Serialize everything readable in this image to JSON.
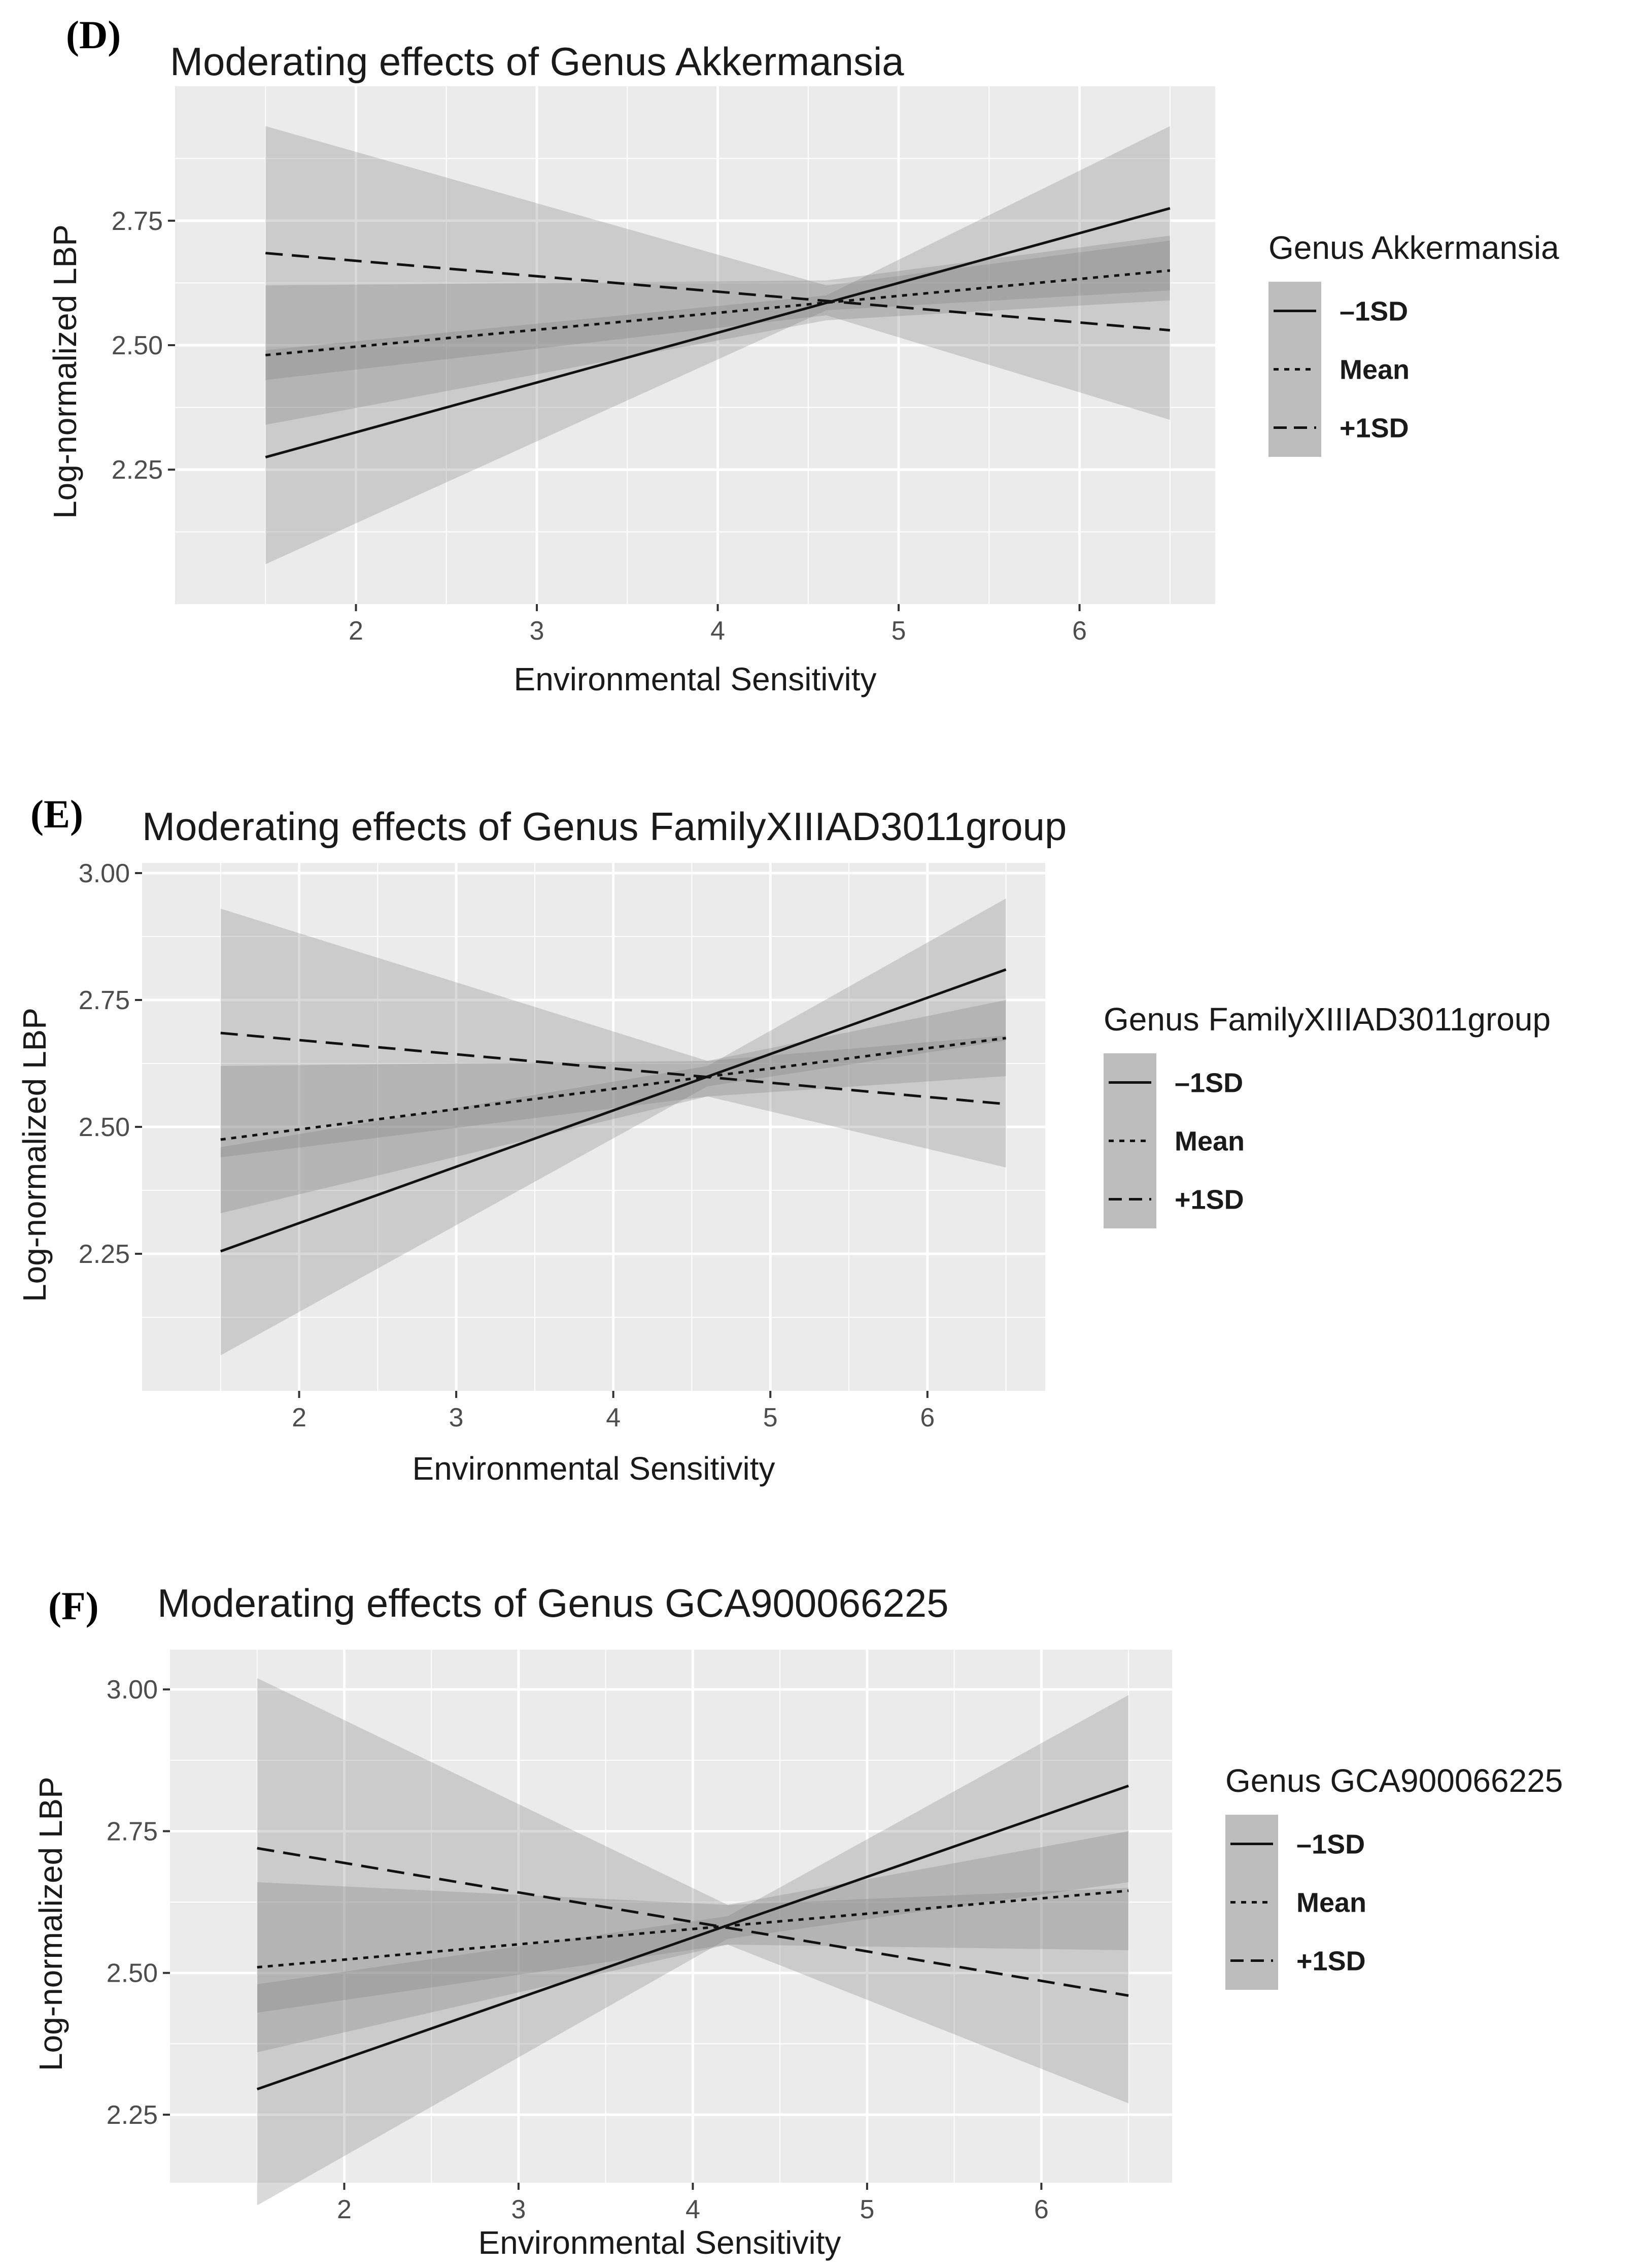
{
  "chart_data": [
    {
      "type": "line",
      "panel_label": "(D)",
      "title": "Moderating effects of Genus Akkermansia",
      "xlabel": "Environmental Sensitivity",
      "ylabel": "Log-normalized LBP",
      "x_ticks": [
        2,
        3,
        4,
        5,
        6
      ],
      "y_ticks": [
        2.25,
        2.5,
        2.75
      ],
      "y_tick_labels": [
        "2.25",
        "2.50",
        "2.75"
      ],
      "xlim": [
        1.0,
        6.75
      ],
      "ylim": [
        1.98,
        3.02
      ],
      "grid": true,
      "legend": {
        "title": "Genus Akkermansia",
        "position": "right",
        "entries": [
          "–1SD",
          "Mean",
          "+1SD"
        ]
      },
      "series": [
        {
          "name": "–1SD",
          "line_style": "solid",
          "x": [
            1.5,
            6.5
          ],
          "y": [
            2.275,
            2.775
          ],
          "band": {
            "x": [
              1.5,
              4.6,
              6.5
            ],
            "lower": [
              2.06,
              2.57,
              2.61
            ],
            "upper": [
              2.49,
              2.6,
              2.94
            ]
          }
        },
        {
          "name": "Mean",
          "line_style": "dotted",
          "x": [
            1.5,
            6.5
          ],
          "y": [
            2.48,
            2.65
          ],
          "band": {
            "x": [
              1.5,
              4.6,
              6.5
            ],
            "lower": [
              2.34,
              2.55,
              2.59
            ],
            "upper": [
              2.62,
              2.63,
              2.72
            ]
          }
        },
        {
          "name": "+1SD",
          "line_style": "dashed",
          "x": [
            1.5,
            6.5
          ],
          "y": [
            2.685,
            2.53
          ],
          "band": {
            "x": [
              1.5,
              4.6,
              6.5
            ],
            "lower": [
              2.43,
              2.56,
              2.35
            ],
            "upper": [
              2.94,
              2.62,
              2.71
            ]
          }
        }
      ]
    },
    {
      "type": "line",
      "panel_label": "(E)",
      "title": "Moderating effects of Genus FamilyXIIIAD3011group",
      "xlabel": "Environmental Sensitivity",
      "ylabel": "Log-normalized LBP",
      "x_ticks": [
        2,
        3,
        4,
        5,
        6
      ],
      "y_ticks": [
        2.25,
        2.5,
        2.75,
        3.0
      ],
      "y_tick_labels": [
        "2.25",
        "2.50",
        "2.75",
        "3.00"
      ],
      "xlim": [
        1.0,
        6.75
      ],
      "ylim": [
        1.98,
        3.02
      ],
      "grid": true,
      "legend": {
        "title": "Genus FamilyXIIIAD3011group",
        "position": "right",
        "entries": [
          "–1SD",
          "Mean",
          "+1SD"
        ]
      },
      "series": [
        {
          "name": "–1SD",
          "line_style": "solid",
          "x": [
            1.5,
            6.5
          ],
          "y": [
            2.255,
            2.81
          ],
          "band": {
            "x": [
              1.5,
              4.6,
              6.5
            ],
            "lower": [
              2.05,
              2.58,
              2.67
            ],
            "upper": [
              2.46,
              2.62,
              2.95
            ]
          }
        },
        {
          "name": "Mean",
          "line_style": "dotted",
          "x": [
            1.5,
            6.5
          ],
          "y": [
            2.475,
            2.675
          ],
          "band": {
            "x": [
              1.5,
              4.6,
              6.5
            ],
            "lower": [
              2.33,
              2.56,
              2.6
            ],
            "upper": [
              2.62,
              2.63,
              2.75
            ]
          }
        },
        {
          "name": "+1SD",
          "line_style": "dashed",
          "x": [
            1.5,
            6.5
          ],
          "y": [
            2.685,
            2.545
          ],
          "band": {
            "x": [
              1.5,
              4.6,
              6.5
            ],
            "lower": [
              2.44,
              2.56,
              2.42
            ],
            "upper": [
              2.93,
              2.63,
              2.68
            ]
          }
        }
      ]
    },
    {
      "type": "line",
      "panel_label": "(F)",
      "title": "Moderating effects of Genus GCA900066225",
      "xlabel": "Environmental Sensitivity",
      "ylabel": "Log-normalized LBP",
      "x_ticks": [
        2,
        3,
        4,
        5,
        6
      ],
      "y_ticks": [
        2.25,
        2.5,
        2.75,
        3.0
      ],
      "y_tick_labels": [
        "2.25",
        "2.50",
        "2.75",
        "3.00"
      ],
      "xlim": [
        1.0,
        6.75
      ],
      "ylim": [
        2.13,
        3.07
      ],
      "grid": true,
      "legend": {
        "title": "Genus GCA900066225",
        "position": "right",
        "entries": [
          "–1SD",
          "Mean",
          "+1SD"
        ]
      },
      "series": [
        {
          "name": "–1SD",
          "line_style": "solid",
          "x": [
            1.5,
            6.5
          ],
          "y": [
            2.295,
            2.83
          ],
          "band": {
            "x": [
              1.5,
              4.2,
              6.5
            ],
            "lower": [
              2.09,
              2.56,
              2.66
            ],
            "upper": [
              2.48,
              2.6,
              2.99
            ]
          }
        },
        {
          "name": "Mean",
          "line_style": "dotted",
          "x": [
            1.5,
            6.5
          ],
          "y": [
            2.51,
            2.645
          ],
          "band": {
            "x": [
              1.5,
              4.2,
              6.5
            ],
            "lower": [
              2.36,
              2.55,
              2.54
            ],
            "upper": [
              2.66,
              2.62,
              2.75
            ]
          }
        },
        {
          "name": "+1SD",
          "line_style": "dashed",
          "x": [
            1.5,
            6.5
          ],
          "y": [
            2.72,
            2.46
          ],
          "band": {
            "x": [
              1.5,
              4.2,
              6.5
            ],
            "lower": [
              2.43,
              2.55,
              2.27
            ],
            "upper": [
              3.02,
              2.62,
              2.65
            ]
          }
        }
      ]
    }
  ]
}
